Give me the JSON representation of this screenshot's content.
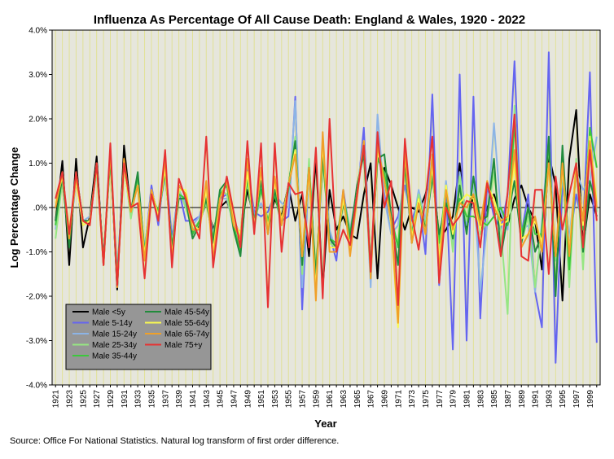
{
  "chart_data": {
    "type": "line",
    "title": "Influenza As Percentage Of All Cause Death: England & Wales, 1920 - 2022",
    "xlabel": "Year",
    "ylabel": "Log Percentage Change",
    "source": "Source: Office For National Statistics. Natural log transform of first order difference.",
    "xlim": [
      1920.5,
      2000.5
    ],
    "ylim": [
      -4.0,
      4.0
    ],
    "y_ticks": [
      "4.0%",
      "3.0%",
      "2.0%",
      "1.0%",
      ".0%",
      "-1.0%",
      "-2.0%",
      "-3.0%",
      "-4.0%"
    ],
    "x_ticks": [
      "1921",
      "1923",
      "1925",
      "1927",
      "1929",
      "1931",
      "1933",
      "1935",
      "1937",
      "1939",
      "1941",
      "1943",
      "1945",
      "1947",
      "1949",
      "1951",
      "1953",
      "1955",
      "1957",
      "1959",
      "1961",
      "1963",
      "1965",
      "1967",
      "1969",
      "1971",
      "1973",
      "1975",
      "1977",
      "1979",
      "1981",
      "1983",
      "1985",
      "1987",
      "1989",
      "1991",
      "1993",
      "1995",
      "1997",
      "1999"
    ],
    "grid": "vertical",
    "background": "#e6e6dc",
    "reference_line": 0,
    "legend_position": "bottom-left",
    "x": [
      1921,
      1922,
      1923,
      1924,
      1925,
      1926,
      1927,
      1928,
      1929,
      1930,
      1931,
      1932,
      1933,
      1934,
      1935,
      1936,
      1937,
      1938,
      1939,
      1940,
      1941,
      1942,
      1943,
      1944,
      1945,
      1946,
      1947,
      1948,
      1949,
      1950,
      1951,
      1952,
      1953,
      1954,
      1955,
      1956,
      1957,
      1958,
      1959,
      1960,
      1961,
      1962,
      1963,
      1964,
      1965,
      1966,
      1967,
      1968,
      1969,
      1970,
      1971,
      1972,
      1973,
      1974,
      1975,
      1976,
      1977,
      1978,
      1979,
      1980,
      1981,
      1982,
      1983,
      1984,
      1985,
      1986,
      1987,
      1988,
      1989,
      1990,
      1991,
      1992,
      1993,
      1994,
      1995,
      1996,
      1997,
      1998,
      1999,
      2000
    ],
    "series": [
      {
        "name": "Male <5y",
        "color": "#000000",
        "values": [
          -0.3,
          1.05,
          -1.3,
          1.1,
          -0.9,
          -0.2,
          1.15,
          -1.3,
          1.3,
          -1.85,
          1.4,
          -0.1,
          0.7,
          -1.1,
          0.4,
          -0.2,
          0.9,
          -0.9,
          0.5,
          0.3,
          -0.6,
          -0.3,
          0.1,
          -0.5,
          0.0,
          0.15,
          -0.3,
          -0.6,
          0.4,
          -0.3,
          0.5,
          -0.4,
          0.2,
          -0.2,
          0.5,
          -0.3,
          0.3,
          -1.1,
          1.1,
          -1.8,
          0.4,
          -0.5,
          -0.2,
          -0.6,
          -0.7,
          0.3,
          1.0,
          -1.6,
          0.9,
          0.5,
          0.0,
          -0.5,
          0.0,
          -0.1,
          0.3,
          0.9,
          -0.7,
          -0.5,
          -0.2,
          1.0,
          -0.5,
          0.3,
          -0.5,
          0.0,
          0.3,
          -0.2,
          -0.4,
          0.2,
          0.5,
          0.0,
          -0.3,
          -1.4,
          1.2,
          0.5,
          -2.1,
          1.1,
          2.2,
          -0.9,
          0.3,
          -0.2
        ]
      },
      {
        "name": "Male 5-14y",
        "color": "#6464f0",
        "values": [
          0.1,
          0.6,
          -0.7,
          0.6,
          -0.4,
          -0.3,
          0.9,
          -1.2,
          1.2,
          -1.5,
          1.0,
          -0.2,
          0.6,
          -1.0,
          0.5,
          -0.4,
          1.0,
          -0.7,
          0.4,
          -0.3,
          -0.3,
          -0.2,
          0.3,
          -0.8,
          0.2,
          0.3,
          -0.3,
          -0.6,
          0.9,
          -0.1,
          -0.2,
          -0.1,
          0.3,
          -0.3,
          -0.2,
          2.5,
          -2.3,
          0.9,
          -1.9,
          1.2,
          -0.6,
          -1.2,
          0.4,
          -0.6,
          0.2,
          1.8,
          -1.4,
          1.4,
          0.3,
          -0.5,
          -0.2,
          0.5,
          -0.3,
          0.2,
          -1.05,
          2.55,
          -1.75,
          0.5,
          -3.2,
          3.0,
          -3.0,
          2.5,
          -2.5,
          0.5,
          -0.2,
          -0.5,
          0.3,
          3.3,
          -0.6,
          0.3,
          -1.9,
          -2.7,
          3.5,
          -3.5,
          0.6,
          -0.8,
          0.3,
          -0.5,
          3.05,
          -3.05
        ]
      },
      {
        "name": "Male 15-24y",
        "color": "#8cb4e6",
        "values": [
          -0.5,
          0.7,
          -0.8,
          0.7,
          -0.3,
          -0.2,
          0.8,
          -1.1,
          1.1,
          -1.6,
          0.9,
          -0.1,
          0.5,
          -0.9,
          0.3,
          -0.2,
          0.7,
          -0.8,
          0.4,
          0.1,
          -0.4,
          -0.2,
          0.2,
          -0.6,
          0.2,
          0.2,
          -0.4,
          -0.7,
          0.8,
          -0.2,
          0.1,
          -0.3,
          0.3,
          0.1,
          0.0,
          2.4,
          -1.8,
          0.8,
          -1.7,
          1.4,
          -0.5,
          -1.0,
          0.3,
          -0.5,
          0.4,
          1.5,
          -1.8,
          2.1,
          0.2,
          -0.6,
          -0.4,
          0.8,
          -0.6,
          0.4,
          -0.3,
          1.2,
          -1.1,
          0.6,
          -0.9,
          0.8,
          -0.4,
          0.6,
          -1.9,
          -0.4,
          1.9,
          -0.1,
          -0.5,
          2.0,
          -0.5,
          -0.4,
          -1.9,
          -0.3,
          1.6,
          -1.2,
          0.7,
          -0.7,
          0.8,
          0.4,
          0.6,
          1.6
        ]
      },
      {
        "name": "Male 25-34y",
        "color": "#96e682",
        "values": [
          -0.7,
          0.6,
          -0.7,
          0.7,
          -0.4,
          -0.3,
          0.9,
          -1.2,
          1.2,
          -1.7,
          1.0,
          -0.25,
          0.6,
          -1.1,
          0.3,
          -0.1,
          0.8,
          -0.9,
          0.4,
          0.0,
          -0.5,
          -0.3,
          0.1,
          -0.7,
          0.4,
          0.3,
          -0.5,
          -0.6,
          0.6,
          -0.5,
          0.5,
          -0.4,
          0.4,
          -0.3,
          0.5,
          1.6,
          -1.5,
          1.1,
          -1.6,
          1.2,
          -0.8,
          -0.9,
          0.3,
          -0.7,
          0.4,
          1.3,
          -1.6,
          1.4,
          0.6,
          -0.4,
          -0.8,
          1.0,
          -0.7,
          0.3,
          -0.4,
          0.9,
          -0.9,
          0.5,
          -1.0,
          0.7,
          -0.3,
          0.7,
          -0.6,
          -0.3,
          0.8,
          -0.5,
          -2.4,
          2.3,
          -0.8,
          -0.2,
          -1.8,
          -0.4,
          1.4,
          -1.2,
          1.0,
          -1.8,
          1.1,
          -1.4,
          1.6,
          -0.1
        ]
      },
      {
        "name": "Male 35-44y",
        "color": "#3cc83c",
        "values": [
          -0.4,
          0.8,
          -0.8,
          0.8,
          -0.3,
          -0.3,
          0.9,
          -1.2,
          1.1,
          -1.6,
          0.9,
          -0.1,
          0.7,
          -1.0,
          0.3,
          -0.1,
          0.8,
          -0.9,
          0.3,
          0.2,
          -0.6,
          -0.3,
          0.2,
          -0.7,
          0.3,
          0.5,
          -0.4,
          -1.0,
          0.7,
          -0.4,
          0.4,
          -0.3,
          0.3,
          -0.4,
          0.4,
          1.4,
          -1.2,
          0.9,
          -1.5,
          1.1,
          -0.7,
          -0.8,
          0.3,
          -0.6,
          0.4,
          1.4,
          -1.3,
          1.1,
          0.8,
          -0.2,
          -0.9,
          0.9,
          -0.6,
          0.2,
          -0.5,
          0.8,
          -0.8,
          0.4,
          -0.7,
          0.2,
          -0.2,
          -0.2,
          -0.3,
          -0.4,
          -0.2,
          0.0,
          -0.4,
          1.9,
          -0.6,
          0.0,
          -0.6,
          -0.6,
          1.5,
          -1.9,
          1.0,
          -1.4,
          1.0,
          -0.5,
          1.8,
          0.9
        ]
      },
      {
        "name": "Male 45-54y",
        "color": "#228b3c",
        "values": [
          -0.3,
          0.7,
          -0.9,
          0.8,
          -0.3,
          -0.3,
          1.0,
          -1.2,
          1.2,
          -1.7,
          1.0,
          -0.1,
          0.8,
          -1.1,
          0.3,
          -0.2,
          0.8,
          -0.9,
          0.2,
          0.2,
          -0.7,
          -0.4,
          0.2,
          -0.8,
          0.4,
          0.6,
          -0.5,
          -1.1,
          0.8,
          -0.3,
          0.6,
          -0.6,
          0.4,
          -0.3,
          0.5,
          1.5,
          -1.3,
          0.9,
          -1.6,
          1.2,
          -0.7,
          -0.9,
          0.1,
          -0.7,
          0.5,
          1.2,
          -1.4,
          1.1,
          1.2,
          -0.2,
          -1.3,
          1.1,
          -0.8,
          0.2,
          -0.5,
          0.7,
          -0.6,
          0.1,
          -0.7,
          0.5,
          -0.6,
          0.7,
          -0.3,
          -0.2,
          1.1,
          -1.1,
          -0.2,
          0.6,
          -0.8,
          0.0,
          -1.0,
          -0.6,
          1.6,
          -2.0,
          1.4,
          -1.1,
          1.0,
          -1.0,
          0.6,
          0.0
        ]
      },
      {
        "name": "Male 55-64y",
        "color": "#fafa50",
        "values": [
          0.1,
          0.7,
          -0.5,
          0.6,
          -0.4,
          -0.3,
          0.9,
          -1.3,
          1.3,
          -1.7,
          0.9,
          -0.1,
          0.5,
          -1.1,
          0.4,
          -0.2,
          0.9,
          -1.1,
          0.4,
          0.4,
          -0.4,
          -0.5,
          0.4,
          -1.0,
          0.2,
          0.6,
          -0.3,
          -0.6,
          0.8,
          -0.4,
          0.8,
          -0.5,
          0.6,
          -0.3,
          0.5,
          1.3,
          -1.1,
          0.8,
          -1.9,
          1.5,
          -0.9,
          -0.9,
          0.2,
          -0.9,
          0.3,
          1.5,
          -1.5,
          1.3,
          0.6,
          -0.4,
          -2.7,
          1.3,
          -0.7,
          0.2,
          -0.6,
          1.0,
          -1.2,
          0.5,
          -0.6,
          0.1,
          0.3,
          0.2,
          -0.5,
          0.5,
          0.2,
          -0.4,
          -0.3,
          1.0,
          -0.7,
          -0.6,
          -0.3,
          -0.8,
          1.0,
          -1.1,
          0.9,
          -1.0,
          1.0,
          -0.4,
          1.6,
          0.1
        ]
      },
      {
        "name": "Male 65-74y",
        "color": "#f0a028",
        "values": [
          0.0,
          0.8,
          -0.7,
          0.7,
          -0.3,
          -0.4,
          1.0,
          -1.3,
          1.3,
          -1.8,
          1.1,
          -0.1,
          0.5,
          -1.2,
          0.4,
          -0.3,
          1.1,
          -1.2,
          0.5,
          0.3,
          -0.5,
          -0.5,
          0.6,
          -1.2,
          0.2,
          0.6,
          -0.4,
          -0.7,
          1.1,
          -0.5,
          0.9,
          -0.6,
          0.7,
          -0.4,
          0.5,
          1.2,
          -1.1,
          0.9,
          -2.1,
          1.7,
          -1.0,
          -1.0,
          0.4,
          -1.1,
          0.2,
          1.5,
          -1.6,
          1.4,
          0.6,
          -0.3,
          -2.6,
          1.3,
          -0.8,
          0.1,
          -0.6,
          1.2,
          -1.4,
          0.4,
          -0.5,
          0.1,
          0.0,
          0.3,
          -0.4,
          0.6,
          0.0,
          -0.3,
          -0.2,
          1.3,
          -0.9,
          -0.6,
          -0.2,
          -1.0,
          1.0,
          -1.1,
          1.0,
          -1.1,
          0.9,
          -0.3,
          1.5,
          0.0
        ]
      },
      {
        "name": "Male 75+y",
        "color": "#e63232",
        "values": [
          0.2,
          0.8,
          -0.6,
          0.8,
          -0.3,
          -0.4,
          1.0,
          -1.3,
          1.45,
          -1.75,
          1.0,
          0.0,
          0.1,
          -1.6,
          0.3,
          -0.3,
          1.3,
          -1.35,
          0.65,
          0.2,
          -0.3,
          -0.7,
          1.6,
          -1.35,
          -0.1,
          0.7,
          -0.1,
          -0.9,
          1.5,
          -0.6,
          1.45,
          -2.25,
          1.45,
          -1.0,
          0.55,
          0.3,
          0.35,
          -0.9,
          1.35,
          -2.05,
          2.0,
          -1.0,
          -0.5,
          -0.85,
          0.3,
          1.4,
          -1.45,
          1.7,
          0.0,
          0.6,
          -2.2,
          1.55,
          -0.2,
          -0.95,
          0.2,
          1.6,
          -1.7,
          0.0,
          -0.4,
          -0.2,
          0.15,
          0.1,
          -0.9,
          0.55,
          -0.05,
          -1.1,
          0.35,
          2.1,
          -1.1,
          -1.2,
          0.4,
          0.4,
          -1.5,
          0.7,
          -0.5,
          0.3,
          1.0,
          -0.9,
          1.3,
          -0.3
        ]
      }
    ]
  }
}
